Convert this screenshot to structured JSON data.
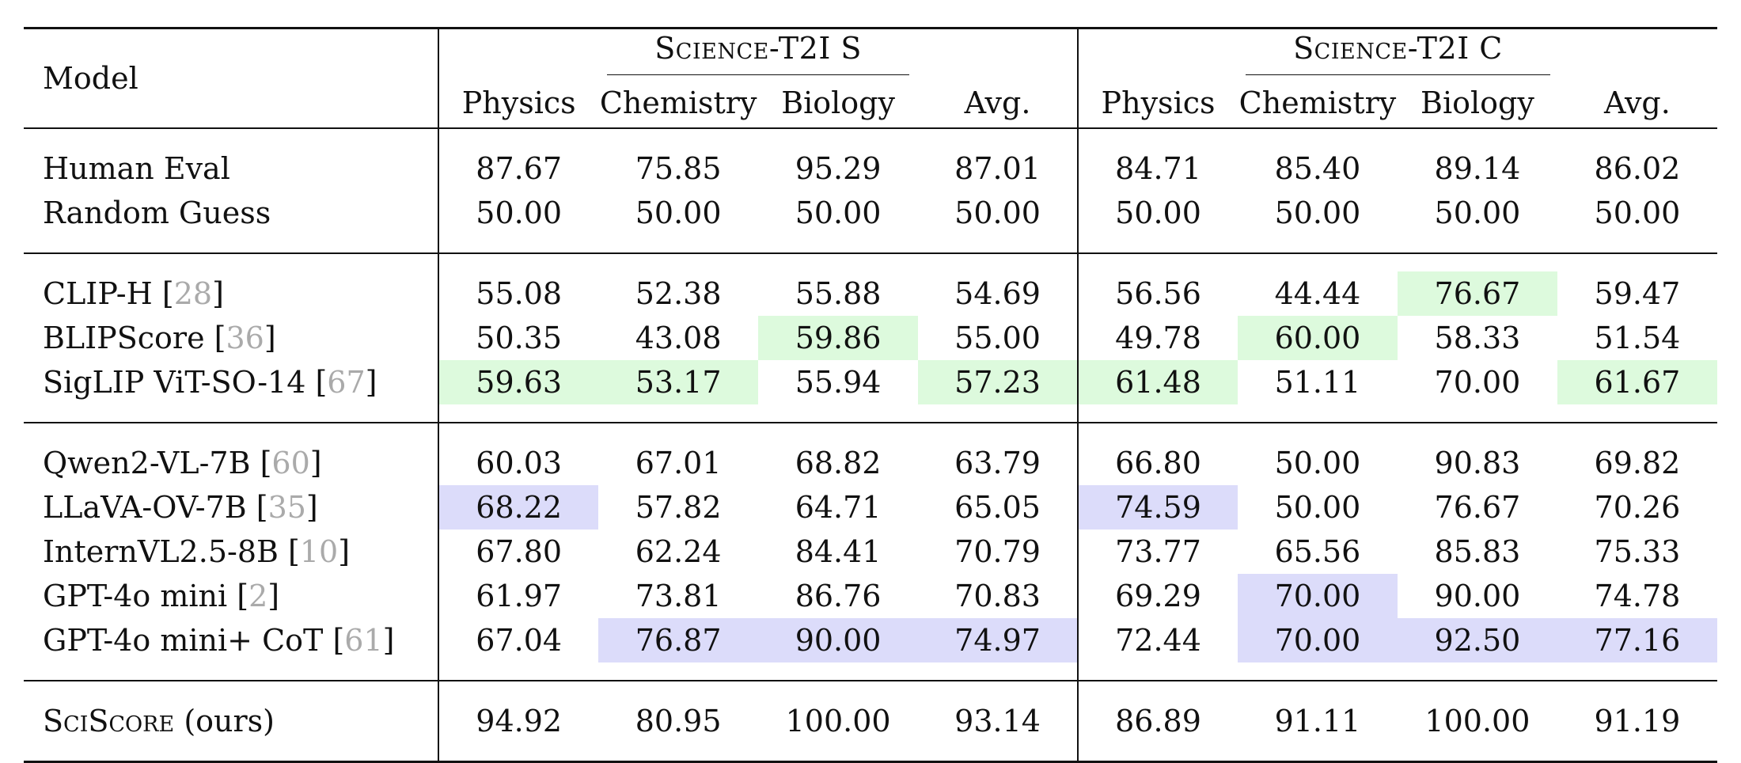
{
  "header": {
    "model_label": "Model",
    "group_s": "Science-T2I S",
    "group_c": "Science-T2I C",
    "subcolumns": [
      "Physics",
      "Chemistry",
      "Biology",
      "Avg."
    ]
  },
  "rows": {
    "human": {
      "name": "Human Eval",
      "ref": "",
      "s": [
        "87.67",
        "75.85",
        "95.29",
        "87.01"
      ],
      "c": [
        "84.71",
        "85.40",
        "89.14",
        "86.02"
      ]
    },
    "random": {
      "name": "Random Guess",
      "ref": "",
      "s": [
        "50.00",
        "50.00",
        "50.00",
        "50.00"
      ],
      "c": [
        "50.00",
        "50.00",
        "50.00",
        "50.00"
      ]
    },
    "clip": {
      "name": "CLIP-H [",
      "ref": "28",
      "close": "]",
      "s": [
        "55.08",
        "52.38",
        "55.88",
        "54.69"
      ],
      "c": [
        "56.56",
        "44.44",
        "76.67",
        "59.47"
      ]
    },
    "blip": {
      "name": "BLIPScore [",
      "ref": "36",
      "close": "]",
      "s": [
        "50.35",
        "43.08",
        "59.86",
        "55.00"
      ],
      "c": [
        "49.78",
        "60.00",
        "58.33",
        "51.54"
      ]
    },
    "siglip": {
      "name": "SigLIP ViT-SO-14 [",
      "ref": "67",
      "close": "]",
      "s": [
        "59.63",
        "53.17",
        "55.94",
        "57.23"
      ],
      "c": [
        "61.48",
        "51.11",
        "70.00",
        "61.67"
      ]
    },
    "qwen": {
      "name": "Qwen2-VL-7B [",
      "ref": "60",
      "close": "]",
      "s": [
        "60.03",
        "67.01",
        "68.82",
        "63.79"
      ],
      "c": [
        "66.80",
        "50.00",
        "90.83",
        "69.82"
      ]
    },
    "llava": {
      "name": "LLaVA-OV-7B [",
      "ref": "35",
      "close": "]",
      "s": [
        "68.22",
        "57.82",
        "64.71",
        "65.05"
      ],
      "c": [
        "74.59",
        "50.00",
        "76.67",
        "70.26"
      ]
    },
    "intern": {
      "name": "InternVL2.5-8B [",
      "ref": "10",
      "close": "]",
      "s": [
        "67.80",
        "62.24",
        "84.41",
        "70.79"
      ],
      "c": [
        "73.77",
        "65.56",
        "85.83",
        "75.33"
      ]
    },
    "gptmini": {
      "name": "GPT-4o mini [",
      "ref": "2",
      "close": "]",
      "s": [
        "61.97",
        "73.81",
        "86.76",
        "70.83"
      ],
      "c": [
        "69.29",
        "70.00",
        "90.00",
        "74.78"
      ]
    },
    "gptcot": {
      "name": "GPT-4o mini+ CoT [",
      "ref": "61",
      "close": "]",
      "s": [
        "67.04",
        "76.87",
        "90.00",
        "74.97"
      ],
      "c": [
        "72.44",
        "70.00",
        "92.50",
        "77.16"
      ]
    },
    "sciscore": {
      "name": "SciScore",
      "suffix": " (ours)",
      "s": [
        "94.92",
        "80.95",
        "100.00",
        "93.14"
      ],
      "c": [
        "86.89",
        "91.11",
        "100.00",
        "91.19"
      ]
    }
  },
  "colors": {
    "highlight_green": "#ddfadd",
    "highlight_purple": "#dcdcfa",
    "reference_gray": "#aaaaaa"
  }
}
